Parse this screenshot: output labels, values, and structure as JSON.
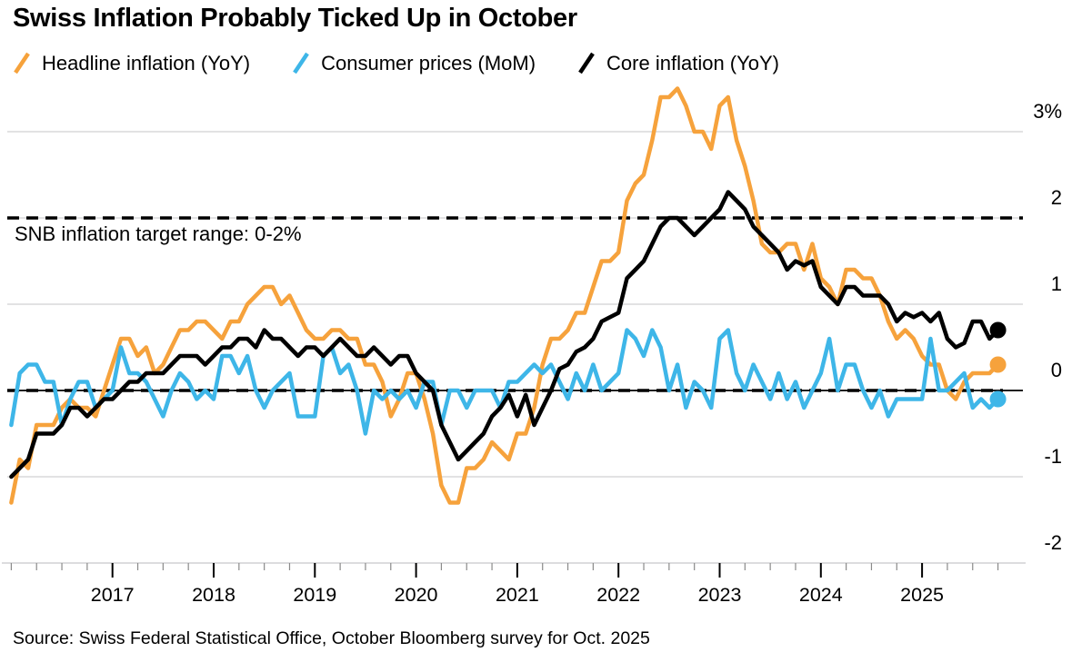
{
  "header": {
    "title": "Swiss Inflation Probably Ticked Up in October"
  },
  "legend": {
    "items": [
      {
        "label": "Headline inflation (YoY)",
        "color": "#F6A23C",
        "icon": "orange-slash-icon"
      },
      {
        "label": "Consumer prices (MoM)",
        "color": "#3EB6E8",
        "icon": "blue-slash-icon"
      },
      {
        "label": "Core inflation (YoY)",
        "color": "#000000",
        "icon": "black-slash-icon"
      }
    ]
  },
  "annotation": {
    "snb_target_label": "SNB inflation target range: 0-2%"
  },
  "source": {
    "text": "Source: Swiss Federal Statistical Office, October Bloomberg survey for Oct. 2025"
  },
  "colors": {
    "headline": "#F6A23C",
    "consumer_mom": "#3EB6E8",
    "core": "#000000",
    "gridline": "#d0d1d2",
    "axis": "#c7c8c9",
    "minor_tick": "#8a8a8a",
    "major_tick": "#000000",
    "target_line": "#000000",
    "zero_line": "#000000"
  },
  "chart_data": {
    "type": "line",
    "title": "Swiss Inflation Probably Ticked Up in October",
    "x_start": "2016-01",
    "x_end": "2025-10",
    "frequency": "monthly",
    "xlabel": "",
    "ylabel": "%",
    "ylim": [
      -2,
      3
    ],
    "grid_values": [
      3,
      2,
      1,
      -1
    ],
    "y_ticks": [
      {
        "value": 3,
        "label": "3%"
      },
      {
        "value": 2,
        "label": "2"
      },
      {
        "value": 1,
        "label": "1"
      },
      {
        "value": 0,
        "label": "0"
      },
      {
        "value": -1,
        "label": "-1"
      },
      {
        "value": -2,
        "label": "-2"
      }
    ],
    "x_tick_years": [
      "2017",
      "2018",
      "2019",
      "2020",
      "2021",
      "2022",
      "2023",
      "2024",
      "2025"
    ],
    "target_lines": [
      {
        "value": 2,
        "style": "dashed",
        "label": "SNB inflation target range: 0-2%"
      },
      {
        "value": 0,
        "style": "dashed",
        "label": ""
      }
    ],
    "zero_axis": true,
    "legend_position": "top-left",
    "series": [
      {
        "name": "Headline inflation (YoY)",
        "color": "#F6A23C",
        "end_dot": true,
        "last_value_is_survey": true,
        "values": [
          -1.3,
          -0.8,
          -0.9,
          -0.4,
          -0.4,
          -0.4,
          -0.2,
          -0.1,
          -0.2,
          -0.2,
          -0.3,
          0.0,
          0.3,
          0.6,
          0.6,
          0.4,
          0.5,
          0.2,
          0.3,
          0.5,
          0.7,
          0.7,
          0.8,
          0.8,
          0.7,
          0.6,
          0.8,
          0.8,
          1.0,
          1.1,
          1.2,
          1.2,
          1.0,
          1.1,
          0.9,
          0.7,
          0.6,
          0.6,
          0.7,
          0.7,
          0.6,
          0.6,
          0.3,
          0.3,
          0.1,
          -0.3,
          -0.1,
          0.2,
          0.2,
          -0.1,
          -0.5,
          -1.1,
          -1.3,
          -1.3,
          -0.9,
          -0.9,
          -0.8,
          -0.6,
          -0.7,
          -0.8,
          -0.5,
          -0.5,
          -0.2,
          0.3,
          0.6,
          0.6,
          0.7,
          0.9,
          0.9,
          1.2,
          1.5,
          1.5,
          1.6,
          2.2,
          2.4,
          2.5,
          2.9,
          3.4,
          3.4,
          3.5,
          3.3,
          3.0,
          3.0,
          2.8,
          3.3,
          3.4,
          2.9,
          2.6,
          2.2,
          1.7,
          1.6,
          1.6,
          1.7,
          1.7,
          1.4,
          1.7,
          1.3,
          1.2,
          1.0,
          1.4,
          1.4,
          1.3,
          1.3,
          1.1,
          0.8,
          0.6,
          0.7,
          0.6,
          0.4,
          0.3,
          0.3,
          0.0,
          -0.1,
          0.1,
          0.2,
          0.2,
          0.2,
          0.3
        ]
      },
      {
        "name": "Consumer prices (MoM)",
        "color": "#3EB6E8",
        "end_dot": true,
        "last_value_is_survey": true,
        "values": [
          -0.4,
          0.2,
          0.3,
          0.3,
          0.1,
          0.1,
          -0.4,
          -0.1,
          0.1,
          0.1,
          -0.2,
          -0.1,
          0.0,
          0.5,
          0.2,
          0.2,
          0.1,
          -0.1,
          -0.3,
          0.0,
          0.2,
          0.1,
          -0.1,
          0.0,
          -0.1,
          0.4,
          0.4,
          0.2,
          0.4,
          0.0,
          -0.2,
          0.0,
          0.1,
          0.2,
          -0.3,
          -0.3,
          -0.3,
          0.4,
          0.5,
          0.2,
          0.3,
          0.0,
          -0.5,
          0.0,
          -0.1,
          0.0,
          -0.1,
          0.0,
          -0.2,
          0.1,
          0.1,
          -0.4,
          0.0,
          0.0,
          -0.2,
          0.0,
          0.0,
          0.0,
          -0.2,
          0.1,
          0.1,
          0.2,
          0.3,
          0.2,
          0.3,
          0.1,
          -0.1,
          0.2,
          0.0,
          0.3,
          0.0,
          0.1,
          0.2,
          0.7,
          0.6,
          0.4,
          0.7,
          0.5,
          0.0,
          0.3,
          -0.2,
          0.1,
          0.0,
          -0.2,
          0.6,
          0.7,
          0.2,
          0.0,
          0.3,
          0.1,
          -0.1,
          0.2,
          -0.1,
          0.1,
          -0.2,
          0.0,
          0.2,
          0.6,
          0.0,
          0.3,
          0.3,
          0.0,
          -0.2,
          0.0,
          -0.3,
          -0.1,
          -0.1,
          -0.1,
          -0.1,
          0.6,
          0.0,
          0.0,
          0.1,
          0.2,
          -0.2,
          -0.1,
          -0.2,
          -0.1
        ]
      },
      {
        "name": "Core inflation (YoY)",
        "color": "#000000",
        "end_dot": true,
        "last_value_is_survey": true,
        "values": [
          -1.0,
          -0.9,
          -0.8,
          -0.5,
          -0.5,
          -0.5,
          -0.4,
          -0.2,
          -0.2,
          -0.3,
          -0.2,
          -0.1,
          -0.1,
          0.0,
          0.1,
          0.1,
          0.2,
          0.2,
          0.2,
          0.3,
          0.4,
          0.4,
          0.4,
          0.3,
          0.4,
          0.5,
          0.5,
          0.6,
          0.6,
          0.5,
          0.7,
          0.6,
          0.6,
          0.5,
          0.4,
          0.5,
          0.5,
          0.4,
          0.5,
          0.6,
          0.5,
          0.4,
          0.4,
          0.5,
          0.4,
          0.3,
          0.4,
          0.4,
          0.2,
          0.1,
          0.0,
          -0.4,
          -0.6,
          -0.8,
          -0.7,
          -0.6,
          -0.5,
          -0.3,
          -0.2,
          -0.05,
          -0.3,
          -0.05,
          -0.4,
          -0.2,
          0.0,
          0.25,
          0.3,
          0.45,
          0.5,
          0.6,
          0.8,
          0.85,
          0.9,
          1.3,
          1.4,
          1.5,
          1.7,
          1.9,
          2.0,
          2.0,
          1.9,
          1.8,
          1.9,
          2.0,
          2.1,
          2.3,
          2.2,
          2.1,
          1.9,
          1.8,
          1.7,
          1.6,
          1.4,
          1.5,
          1.45,
          1.5,
          1.2,
          1.1,
          1.0,
          1.2,
          1.2,
          1.1,
          1.1,
          1.1,
          1.0,
          0.8,
          0.9,
          0.85,
          0.9,
          0.8,
          0.9,
          0.6,
          0.5,
          0.55,
          0.8,
          0.8,
          0.6,
          0.7
        ]
      }
    ]
  }
}
